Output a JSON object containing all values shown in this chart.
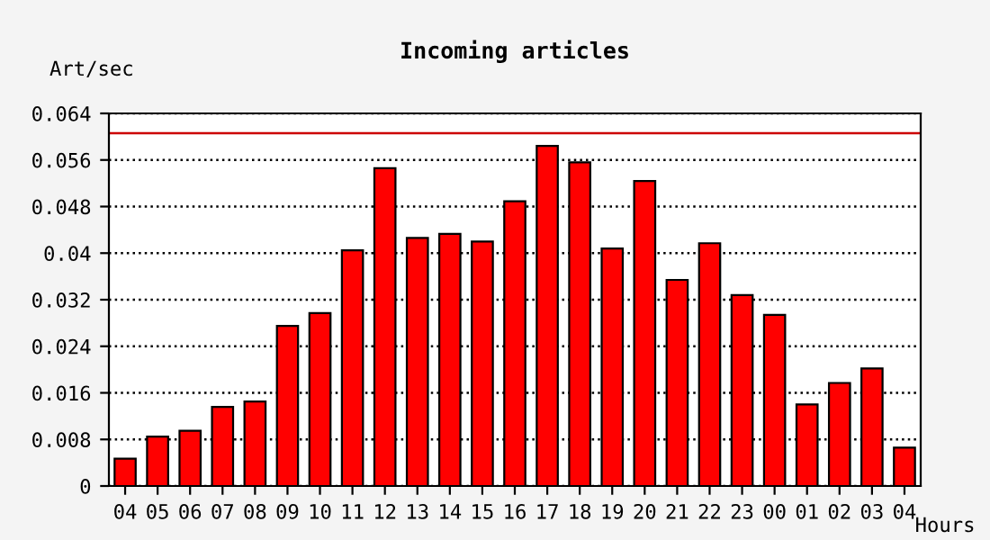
{
  "chart_data": {
    "type": "bar",
    "title": "Incoming articles",
    "xlabel": "Hours",
    "ylabel": "Art/sec",
    "categories": [
      "04",
      "05",
      "06",
      "07",
      "08",
      "09",
      "10",
      "11",
      "12",
      "13",
      "14",
      "15",
      "16",
      "17",
      "18",
      "19",
      "20",
      "21",
      "22",
      "23",
      "00",
      "01",
      "02",
      "03",
      "04"
    ],
    "values": [
      0.0047,
      0.0085,
      0.0095,
      0.0136,
      0.0145,
      0.0275,
      0.0297,
      0.0405,
      0.0546,
      0.0426,
      0.0433,
      0.042,
      0.0489,
      0.0584,
      0.0556,
      0.0408,
      0.0524,
      0.0354,
      0.0417,
      0.0328,
      0.0294,
      0.014,
      0.0177,
      0.0202,
      0.0066
    ],
    "color": "#ff0000",
    "ylim": [
      0,
      0.064
    ],
    "yticks": [
      0,
      0.008,
      0.016,
      0.024,
      0.032,
      0.04,
      0.048,
      0.056,
      0.064
    ],
    "grid": "y",
    "line_style": "dotted",
    "ref_lines": [
      {
        "axis": "y",
        "value": 0.0606,
        "color": "#cc0000",
        "line_style": "solid"
      }
    ]
  }
}
